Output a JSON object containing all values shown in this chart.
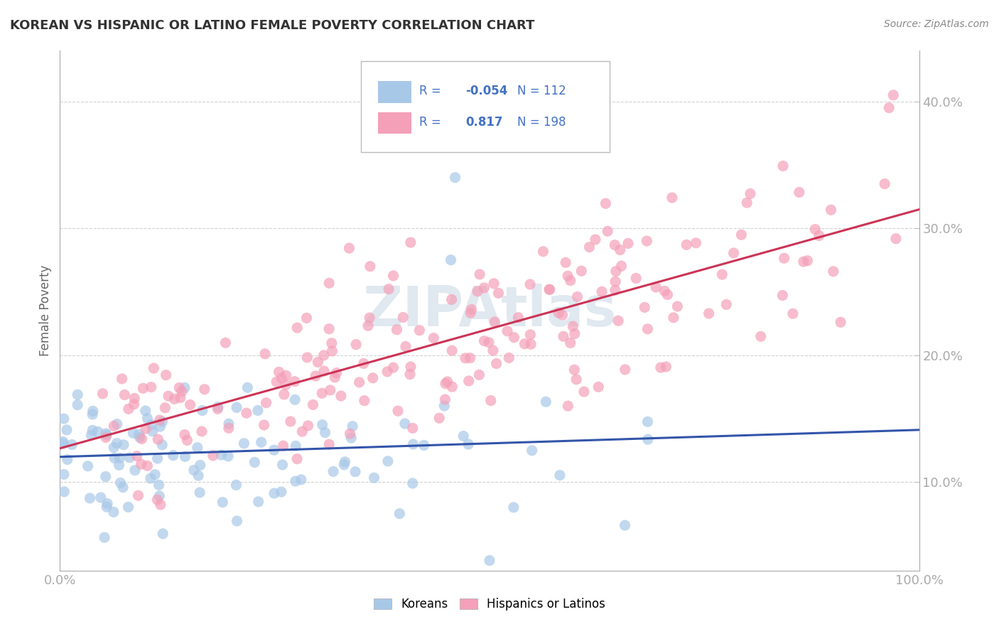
{
  "title": "KOREAN VS HISPANIC OR LATINO FEMALE POVERTY CORRELATION CHART",
  "source": "Source: ZipAtlas.com",
  "ylabel": "Female Poverty",
  "yticks": [
    0.1,
    0.2,
    0.3,
    0.4
  ],
  "ytick_labels": [
    "10.0%",
    "20.0%",
    "30.0%",
    "40.0%"
  ],
  "xtick_labels": [
    "0.0%",
    "100.0%"
  ],
  "xlim": [
    0.0,
    1.0
  ],
  "ylim": [
    0.03,
    0.44
  ],
  "korean_R": -0.054,
  "korean_N": 112,
  "hispanic_R": 0.817,
  "hispanic_N": 198,
  "korean_color": "#a8c8e8",
  "hispanic_color": "#f4a0b8",
  "korean_line_color": "#3355aa",
  "hispanic_line_color": "#cc3355",
  "grid_color": "#cccccc",
  "title_color": "#333333",
  "axis_tick_color": "#4472c4",
  "legend_text_color": "#4472c4",
  "legend_r_color": "#cc2200",
  "background_color": "#ffffff",
  "watermark_text": "ZIPAtlas",
  "watermark_color": "#e0e8f0",
  "watermark_fontsize": 56
}
